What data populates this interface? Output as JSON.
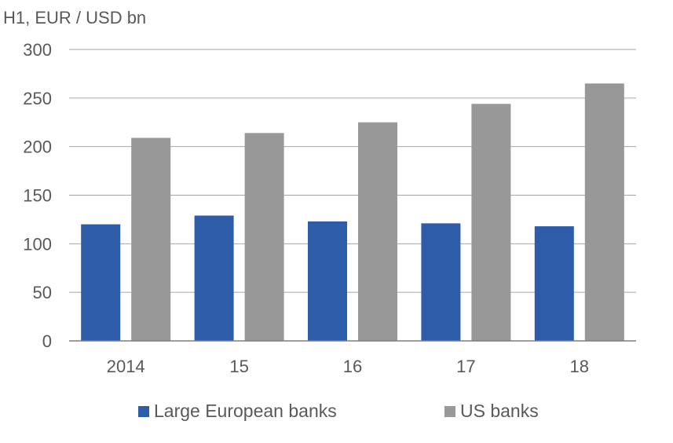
{
  "chart_data": {
    "type": "bar",
    "title": "",
    "unit_label": "H1, EUR / USD bn",
    "xlabel": "",
    "ylabel": "",
    "categories": [
      "2014",
      "15",
      "16",
      "17",
      "18"
    ],
    "series": [
      {
        "name": "Large European banks",
        "color": "#2f5ca9",
        "values": [
          120,
          129,
          123,
          121,
          118
        ]
      },
      {
        "name": "US banks",
        "color": "#989898",
        "values": [
          209,
          214,
          225,
          244,
          265
        ]
      }
    ],
    "ylim": [
      0,
      300
    ],
    "yticks": [
      0,
      50,
      100,
      150,
      200,
      250,
      300
    ],
    "grid": true,
    "legend_position": "bottom"
  }
}
